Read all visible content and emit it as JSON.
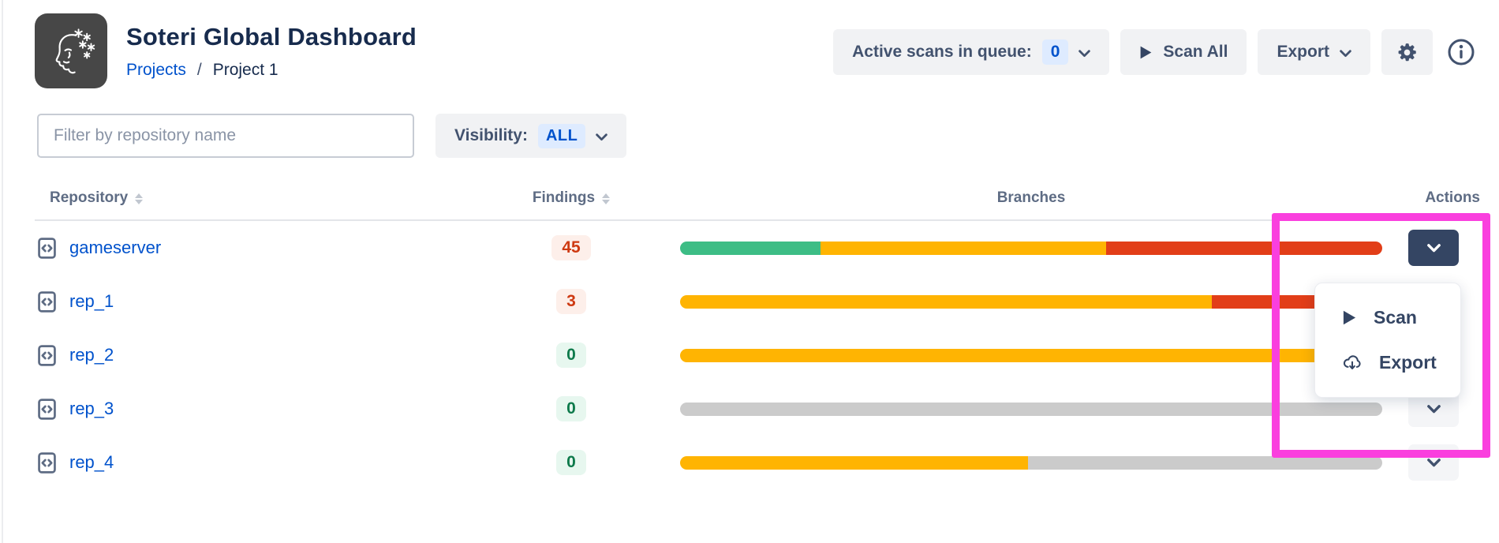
{
  "header": {
    "title": "Soteri Global Dashboard",
    "breadcrumb": {
      "projects": "Projects",
      "separator": "/",
      "current": "Project 1"
    },
    "queue": {
      "label": "Active scans in queue:",
      "count": "0"
    },
    "scan_all_label": "Scan All",
    "export_label": "Export",
    "icons": [
      "play-icon",
      "chevron-down-icon",
      "gear-icon",
      "info-icon"
    ]
  },
  "filters": {
    "placeholder": "Filter by repository name",
    "visibility_label": "Visibility:",
    "visibility_value": "ALL"
  },
  "table": {
    "columns": [
      {
        "label": "Repository",
        "sortable": true
      },
      {
        "label": "Findings",
        "sortable": true
      },
      {
        "label": "Branches",
        "sortable": false
      },
      {
        "label": "Actions",
        "sortable": false
      }
    ],
    "rows": [
      {
        "name": "gameserver",
        "findings": "45",
        "findings_severity": "red",
        "branch_segments": [
          {
            "color": "green",
            "pct": 20
          },
          {
            "color": "yellow",
            "pct": 40.7
          },
          {
            "color": "red",
            "pct": 39.3
          }
        ],
        "action_menu_open": true
      },
      {
        "name": "rep_1",
        "findings": "3",
        "findings_severity": "red",
        "branch_segments": [
          {
            "color": "yellow",
            "pct": 75.7
          },
          {
            "color": "red",
            "pct": 24.3
          }
        ],
        "action_menu_open": false
      },
      {
        "name": "rep_2",
        "findings": "0",
        "findings_severity": "green",
        "branch_segments": [
          {
            "color": "yellow",
            "pct": 100
          }
        ],
        "action_menu_open": false
      },
      {
        "name": "rep_3",
        "findings": "0",
        "findings_severity": "green",
        "branch_segments": [
          {
            "color": "gray",
            "pct": 100
          }
        ],
        "action_menu_open": false
      },
      {
        "name": "rep_4",
        "findings": "0",
        "findings_severity": "green",
        "branch_segments": [
          {
            "color": "yellow",
            "pct": 49.6
          },
          {
            "color": "gray",
            "pct": 50.4
          }
        ],
        "action_menu_open": false
      }
    ]
  },
  "action_menu": {
    "items": [
      {
        "icon": "play-icon",
        "label": "Scan"
      },
      {
        "icon": "cloud-download-icon",
        "label": "Export"
      }
    ]
  },
  "colors": {
    "accent_blue": "#0052CC",
    "navy": "#344563",
    "magenta_highlight": "#FA3FDE",
    "bar": {
      "green": "#3DBD85",
      "yellow": "#FFB402",
      "red": "#E23E18",
      "gray": "#CBCBCB"
    },
    "findings_badge": {
      "red": {
        "text": "#CE3A12",
        "bg": "#FDEFEA"
      },
      "green": {
        "text": "#0E7A4B",
        "bg": "#E7F7EF"
      }
    }
  }
}
